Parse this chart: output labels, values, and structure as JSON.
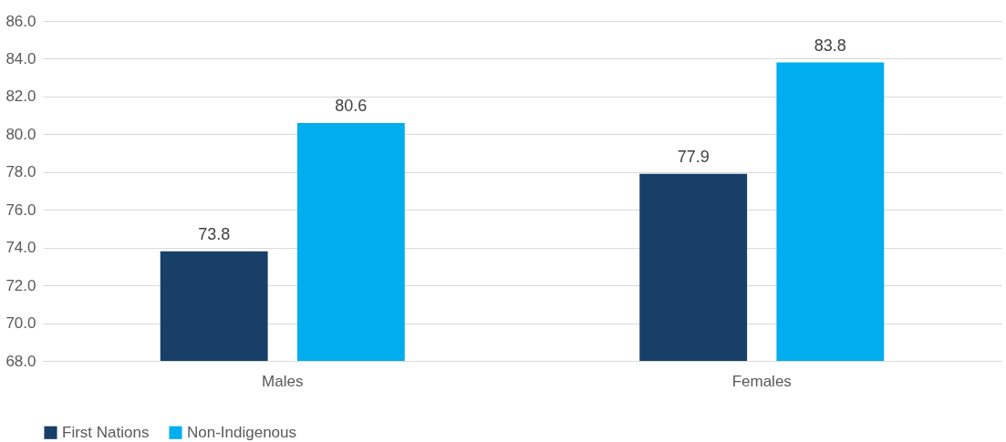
{
  "chart_data": {
    "type": "bar",
    "categories": [
      "Males",
      "Females"
    ],
    "series": [
      {
        "name": "First Nations",
        "color": "#173f68",
        "values": [
          73.8,
          77.9
        ]
      },
      {
        "name": "Non-Indigenous",
        "color": "#00adee",
        "values": [
          80.6,
          83.8
        ]
      }
    ],
    "ylim": [
      68,
      86
    ],
    "yticks": [
      {
        "value": 68,
        "label": "68.0"
      },
      {
        "value": 70,
        "label": "70.0"
      },
      {
        "value": 72,
        "label": "72.0"
      },
      {
        "value": 74,
        "label": "74.0"
      },
      {
        "value": 76,
        "label": "76.0"
      },
      {
        "value": 78,
        "label": "78.0"
      },
      {
        "value": 80,
        "label": "80.0"
      },
      {
        "value": 82,
        "label": "82.0"
      },
      {
        "value": 84,
        "label": "84.0"
      },
      {
        "value": 86,
        "label": "86.0"
      }
    ],
    "grid": "y",
    "legend": "bottom",
    "data_labels": true
  }
}
